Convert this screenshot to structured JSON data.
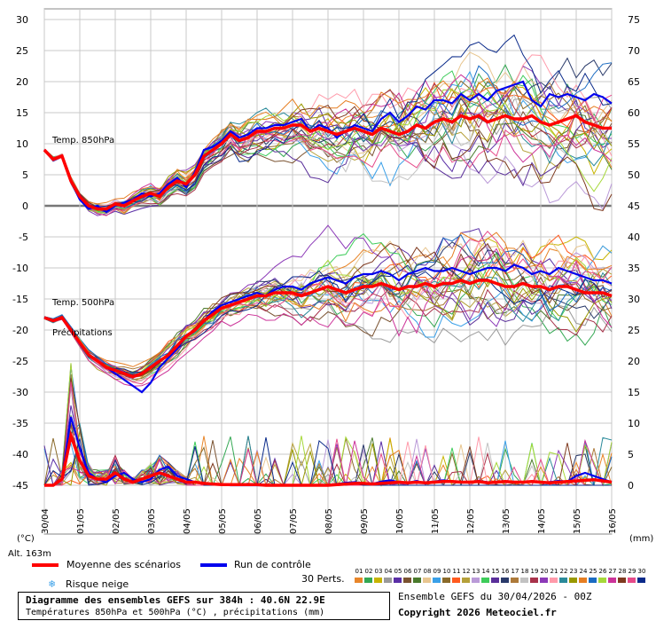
{
  "chart_data": {
    "type": "line",
    "left_axis_unit": "(°C)",
    "right_axis_unit": "(mm)",
    "left_axis_ticks": [
      "30",
      "25",
      "20",
      "15",
      "10",
      "5",
      "0",
      "-5",
      "-10",
      "-15",
      "-20",
      "-25",
      "-30",
      "-35",
      "-40",
      "-45"
    ],
    "right_axis_ticks": [
      "75",
      "70",
      "65",
      "60",
      "55",
      "50",
      "45",
      "40",
      "35",
      "30",
      "25",
      "20",
      "15",
      "10",
      "5",
      "0"
    ],
    "ylim_temp": [
      -45,
      30
    ],
    "ylim_precip": [
      0,
      75
    ],
    "x_ticks": [
      "30/04",
      "01/05",
      "02/05",
      "03/05",
      "04/05",
      "05/05",
      "06/05",
      "07/05",
      "08/05",
      "09/05",
      "10/05",
      "11/05",
      "12/05",
      "13/05",
      "14/05",
      "15/05",
      "16/05"
    ],
    "altitude_label": "Alt. 163m",
    "annotations": {
      "t850": "Temp. 850hPa",
      "t500": "Temp. 500hPa",
      "precip": "Précipitations"
    },
    "series": [
      {
        "name": "Moyenne des scénarios",
        "color": "#ff0000",
        "t850": [
          9,
          7.5,
          8,
          4,
          1.5,
          0,
          -0.5,
          -0.5,
          0.3,
          0,
          0.8,
          1.5,
          2,
          1.5,
          3,
          4,
          3.5,
          5,
          8,
          9,
          10,
          11.5,
          10.5,
          11,
          12,
          12,
          12.5,
          12.5,
          13,
          13,
          12,
          12.5,
          12,
          11.5,
          12,
          12.5,
          12,
          11.5,
          12.5,
          12,
          11.5,
          12,
          13,
          12.5,
          13.5,
          14,
          13.5,
          14.5,
          14,
          14.5,
          13.5,
          14,
          14.5,
          14,
          14,
          14.5,
          13.5,
          13,
          13.5,
          14,
          14.5,
          13.5,
          13,
          12.5,
          12.5
        ],
        "t500": [
          -18,
          -18.5,
          -18,
          -20,
          -22,
          -24,
          -25,
          -26,
          -26.5,
          -27,
          -27.5,
          -27,
          -26,
          -25,
          -24,
          -22.5,
          -21,
          -20,
          -18.5,
          -17.5,
          -16.5,
          -16,
          -15.5,
          -15,
          -14.5,
          -14.5,
          -14,
          -14,
          -14,
          -14.5,
          -14,
          -13.5,
          -13,
          -13.5,
          -14,
          -13.5,
          -13,
          -13,
          -12.5,
          -13,
          -13.5,
          -13,
          -13,
          -12.5,
          -13,
          -12.5,
          -12.5,
          -12,
          -12.5,
          -12,
          -12,
          -12.5,
          -13,
          -13,
          -12.5,
          -13,
          -13,
          -13.5,
          -13,
          -13,
          -13.5,
          -14,
          -14,
          -14,
          -14.5
        ],
        "precip": [
          0,
          0,
          1,
          8,
          4,
          1.5,
          1,
          1,
          2,
          1,
          0.5,
          1,
          1.5,
          2,
          1.5,
          1,
          0.5,
          0.5,
          0.3,
          0.2,
          0.1,
          0.1,
          0.1,
          0.1,
          0.1,
          0,
          0,
          0,
          0,
          0,
          0,
          0,
          0,
          0.1,
          0.2,
          0.3,
          0.3,
          0.2,
          0.3,
          0.4,
          0.5,
          0.4,
          0.5,
          0.4,
          0.5,
          0.6,
          0.6,
          0.5,
          0.5,
          0.6,
          0.4,
          0.5,
          0.6,
          0.5,
          0.5,
          0.6,
          0.5,
          0.4,
          0.5,
          0.6,
          0.7,
          0.8,
          0.9,
          0.7,
          0.5
        ]
      },
      {
        "name": "Run de contrôle",
        "color": "#0000ee",
        "t850": [
          9,
          7.5,
          8,
          4,
          1,
          -0.5,
          0,
          -1,
          0,
          0.5,
          1,
          2,
          1.5,
          2,
          3.5,
          4.5,
          3,
          5.5,
          9,
          9.5,
          10.5,
          12,
          11,
          11.5,
          12.5,
          12.5,
          13,
          13,
          13.5,
          14,
          12,
          13,
          12.5,
          11,
          12,
          13,
          12.5,
          12,
          14,
          15,
          13.5,
          14.5,
          16,
          15.5,
          17,
          17,
          16.5,
          18,
          17,
          18,
          17,
          18.5,
          19,
          19.5,
          20,
          17,
          16,
          18,
          17.5,
          18,
          17.5,
          17,
          18,
          17.5,
          16.5
        ],
        "t500": [
          -18,
          -18.5,
          -18,
          -20,
          -22,
          -24,
          -25,
          -26,
          -27,
          -28,
          -29,
          -30,
          -28.5,
          -26,
          -24.5,
          -23,
          -21,
          -20,
          -18.5,
          -17,
          -16,
          -15.5,
          -15,
          -14.5,
          -14,
          -14.5,
          -13.5,
          -13,
          -13,
          -13.5,
          -12.5,
          -12,
          -11.5,
          -12,
          -12.5,
          -11.5,
          -11,
          -11,
          -10.5,
          -11,
          -12,
          -11,
          -10.5,
          -10,
          -10.5,
          -10.5,
          -10,
          -10.5,
          -11,
          -10.5,
          -10,
          -10,
          -10.5,
          -9.5,
          -10,
          -11,
          -10.5,
          -11,
          -10,
          -10.5,
          -11,
          -11.5,
          -12,
          -12,
          -12.5
        ],
        "precip": [
          0,
          0,
          1,
          11,
          6,
          2,
          1,
          0.5,
          1.5,
          2,
          1,
          0.5,
          1,
          2.5,
          3,
          1.5,
          1,
          0.5,
          0.3,
          0.2,
          0.1,
          0,
          0,
          0,
          0,
          0,
          0,
          0,
          0,
          0,
          0,
          0,
          0,
          0.2,
          0.4,
          0.5,
          0.3,
          0.2,
          0.6,
          0.8,
          0.5,
          0.4,
          0.7,
          0.3,
          0.6,
          0.8,
          0.6,
          0.4,
          0.5,
          0.7,
          0.5,
          0.4,
          0.6,
          0.5,
          0.5,
          0.6,
          0.4,
          0.5,
          0.7,
          0.6,
          1.5,
          2,
          1.5,
          1,
          0.5
        ]
      }
    ],
    "scenario_colors": [
      "#e8862a",
      "#34a853",
      "#c8b400",
      "#9a9a9a",
      "#5a2ea6",
      "#7a5230",
      "#4a7a2c",
      "#e8c690",
      "#3aa0e8",
      "#8a6a2a",
      "#ff5a1e",
      "#b5a03a",
      "#ba9ad8",
      "#3ecc5a",
      "#5a2f9a",
      "#2a3a6a",
      "#ad7a3a",
      "#c2c2c2",
      "#a8324a",
      "#8c3ab8",
      "#ff9aaa",
      "#2a8a9a",
      "#999900",
      "#e67e22",
      "#1a6bc2",
      "#a6d83a",
      "#cc3399",
      "#7f3a1f",
      "#e64b8a",
      "#0a2a8a"
    ],
    "scenario_count_label": "30 Perts.",
    "scenario_numbers": [
      "01",
      "02",
      "03",
      "04",
      "05",
      "06",
      "07",
      "08",
      "09",
      "10",
      "11",
      "12",
      "13",
      "14",
      "15",
      "16",
      "17",
      "18",
      "19",
      "20",
      "21",
      "22",
      "23",
      "24",
      "25",
      "26",
      "27",
      "28",
      "29",
      "30"
    ]
  },
  "legend": {
    "mean_label": "Moyenne des scénarios",
    "mean_color": "#ff0000",
    "control_label": "Run de contrôle",
    "control_color": "#0000ee",
    "snow_label": "Risque neige",
    "snow_icon": "snowflake-icon"
  },
  "info": {
    "title": "Diagramme des ensembles GEFS sur 384h : 40.6N 22.9E",
    "subtitle": "Températures 850hPa et 500hPa (°C) , précipitations (mm)",
    "run": "Ensemble GEFS du 30/04/2026 - 00Z",
    "copyright": "Copyright 2026 Meteociel.fr"
  }
}
